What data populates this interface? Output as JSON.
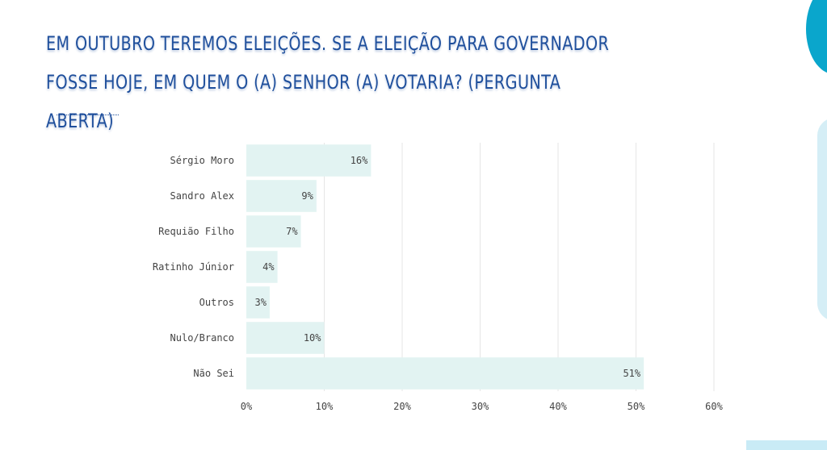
{
  "title": "EM OUTUBRO TEREMOS ELEIÇÕES. SE A ELEIÇÃO PARA GOVERNADOR FOSSE HOJE, EM QUEM O (A) SENHOR (A) VOTARIA? (PERGUNTA ABERTA)",
  "colors": {
    "title": "#1f4f9c",
    "bar": "#e2f3f2",
    "grid": "#e6e6e6",
    "accent": "#0aa6cc"
  },
  "chart_data": {
    "type": "bar",
    "orientation": "horizontal",
    "categories": [
      "Sérgio Moro",
      "Sandro Alex",
      "Requião Filho",
      "Ratinho Júnior",
      "Outros",
      "Nulo/Branco",
      "Não Sei"
    ],
    "values": [
      16,
      9,
      7,
      4,
      3,
      10,
      51
    ],
    "value_labels": [
      "16%",
      "9%",
      "7%",
      "4%",
      "3%",
      "10%",
      "51%"
    ],
    "xlim": [
      0,
      60
    ],
    "xticks": [
      0,
      10,
      20,
      30,
      40,
      50,
      60
    ],
    "xtick_labels": [
      "0%",
      "10%",
      "20%",
      "30%",
      "40%",
      "50%",
      "60%"
    ],
    "xlabel": "",
    "ylabel": "",
    "grid": true,
    "legend": "none"
  }
}
